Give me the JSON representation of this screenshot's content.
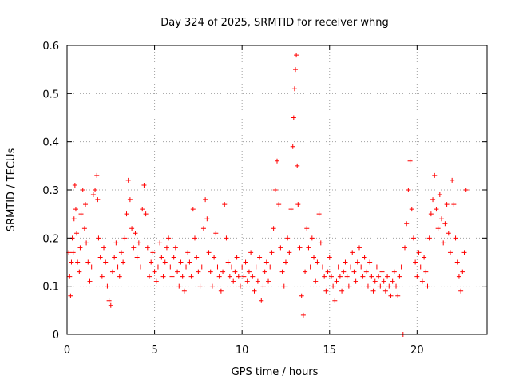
{
  "chart_data": {
    "type": "scatter",
    "title": "Day 324 of 2025, SRMTID for receiver whng",
    "xlabel": "GPS time / hours",
    "ylabel": "SRMTID / TECUs",
    "xlim": [
      0,
      24
    ],
    "ylim": [
      0,
      0.6
    ],
    "xticks": [
      0,
      5,
      10,
      15,
      20
    ],
    "yticks": [
      0,
      0.1,
      0.2,
      0.3,
      0.4,
      0.5,
      0.6
    ],
    "xtick_labels": [
      "0",
      "5",
      "10",
      "15",
      "20"
    ],
    "ytick_labels": [
      "0",
      "0.1",
      "0.2",
      "0.3",
      "0.4",
      "0.5",
      "0.6"
    ],
    "grid": true,
    "marker": "+",
    "color": "#ff0000",
    "series": [
      {
        "name": "SRMTID",
        "points": [
          [
            0.0,
            0.14
          ],
          [
            0.1,
            0.17
          ],
          [
            0.15,
            0.12
          ],
          [
            0.2,
            0.08
          ],
          [
            0.25,
            0.15
          ],
          [
            0.3,
            0.2
          ],
          [
            0.35,
            0.17
          ],
          [
            0.4,
            0.24
          ],
          [
            0.45,
            0.31
          ],
          [
            0.5,
            0.26
          ],
          [
            0.55,
            0.21
          ],
          [
            0.6,
            0.15
          ],
          [
            0.7,
            0.13
          ],
          [
            0.75,
            0.18
          ],
          [
            0.8,
            0.25
          ],
          [
            0.9,
            0.3
          ],
          [
            1.0,
            0.22
          ],
          [
            1.05,
            0.27
          ],
          [
            1.1,
            0.19
          ],
          [
            1.2,
            0.15
          ],
          [
            1.3,
            0.11
          ],
          [
            1.4,
            0.14
          ],
          [
            1.5,
            0.29
          ],
          [
            1.6,
            0.3
          ],
          [
            1.7,
            0.33
          ],
          [
            1.75,
            0.28
          ],
          [
            1.8,
            0.2
          ],
          [
            1.9,
            0.16
          ],
          [
            2.0,
            0.12
          ],
          [
            2.1,
            0.18
          ],
          [
            2.2,
            0.15
          ],
          [
            2.3,
            0.1
          ],
          [
            2.4,
            0.07
          ],
          [
            2.5,
            0.06
          ],
          [
            2.6,
            0.13
          ],
          [
            2.7,
            0.16
          ],
          [
            2.8,
            0.19
          ],
          [
            2.9,
            0.14
          ],
          [
            3.0,
            0.12
          ],
          [
            3.1,
            0.17
          ],
          [
            3.2,
            0.15
          ],
          [
            3.3,
            0.2
          ],
          [
            3.4,
            0.25
          ],
          [
            3.5,
            0.32
          ],
          [
            3.6,
            0.28
          ],
          [
            3.7,
            0.22
          ],
          [
            3.8,
            0.18
          ],
          [
            3.9,
            0.21
          ],
          [
            4.0,
            0.16
          ],
          [
            4.1,
            0.19
          ],
          [
            4.2,
            0.14
          ],
          [
            4.3,
            0.26
          ],
          [
            4.4,
            0.31
          ],
          [
            4.5,
            0.25
          ],
          [
            4.6,
            0.18
          ],
          [
            4.7,
            0.12
          ],
          [
            4.8,
            0.15
          ],
          [
            4.9,
            0.17
          ],
          [
            5.0,
            0.13
          ],
          [
            5.1,
            0.11
          ],
          [
            5.2,
            0.14
          ],
          [
            5.3,
            0.19
          ],
          [
            5.4,
            0.16
          ],
          [
            5.5,
            0.12
          ],
          [
            5.6,
            0.15
          ],
          [
            5.7,
            0.18
          ],
          [
            5.8,
            0.2
          ],
          [
            5.9,
            0.14
          ],
          [
            6.0,
            0.12
          ],
          [
            6.1,
            0.16
          ],
          [
            6.2,
            0.18
          ],
          [
            6.3,
            0.13
          ],
          [
            6.4,
            0.1
          ],
          [
            6.5,
            0.15
          ],
          [
            6.6,
            0.12
          ],
          [
            6.7,
            0.09
          ],
          [
            6.8,
            0.14
          ],
          [
            6.9,
            0.17
          ],
          [
            7.0,
            0.15
          ],
          [
            7.1,
            0.12
          ],
          [
            7.2,
            0.26
          ],
          [
            7.3,
            0.2
          ],
          [
            7.4,
            0.16
          ],
          [
            7.5,
            0.13
          ],
          [
            7.6,
            0.1
          ],
          [
            7.7,
            0.14
          ],
          [
            7.8,
            0.22
          ],
          [
            7.9,
            0.28
          ],
          [
            8.0,
            0.24
          ],
          [
            8.1,
            0.17
          ],
          [
            8.2,
            0.13
          ],
          [
            8.3,
            0.1
          ],
          [
            8.4,
            0.16
          ],
          [
            8.5,
            0.21
          ],
          [
            8.6,
            0.14
          ],
          [
            8.7,
            0.12
          ],
          [
            8.8,
            0.09
          ],
          [
            8.9,
            0.13
          ],
          [
            9.0,
            0.27
          ],
          [
            9.1,
            0.2
          ],
          [
            9.2,
            0.15
          ],
          [
            9.3,
            0.12
          ],
          [
            9.4,
            0.14
          ],
          [
            9.5,
            0.11
          ],
          [
            9.6,
            0.13
          ],
          [
            9.7,
            0.16
          ],
          [
            9.8,
            0.12
          ],
          [
            9.9,
            0.1
          ],
          [
            10.0,
            0.14
          ],
          [
            10.1,
            0.12
          ],
          [
            10.2,
            0.15
          ],
          [
            10.3,
            0.11
          ],
          [
            10.4,
            0.13
          ],
          [
            10.5,
            0.17
          ],
          [
            10.6,
            0.12
          ],
          [
            10.7,
            0.09
          ],
          [
            10.8,
            0.14
          ],
          [
            10.9,
            0.11
          ],
          [
            11.0,
            0.16
          ],
          [
            11.1,
            0.07
          ],
          [
            11.2,
            0.1
          ],
          [
            11.3,
            0.13
          ],
          [
            11.4,
            0.15
          ],
          [
            11.5,
            0.11
          ],
          [
            11.6,
            0.14
          ],
          [
            11.7,
            0.17
          ],
          [
            11.8,
            0.22
          ],
          [
            11.9,
            0.3
          ],
          [
            12.0,
            0.36
          ],
          [
            12.1,
            0.27
          ],
          [
            12.2,
            0.18
          ],
          [
            12.3,
            0.13
          ],
          [
            12.4,
            0.1
          ],
          [
            12.5,
            0.15
          ],
          [
            12.6,
            0.2
          ],
          [
            12.7,
            0.17
          ],
          [
            12.8,
            0.26
          ],
          [
            12.9,
            0.39
          ],
          [
            12.95,
            0.45
          ],
          [
            13.0,
            0.51
          ],
          [
            13.05,
            0.55
          ],
          [
            13.1,
            0.58
          ],
          [
            13.15,
            0.35
          ],
          [
            13.2,
            0.27
          ],
          [
            13.3,
            0.18
          ],
          [
            13.4,
            0.08
          ],
          [
            13.5,
            0.04
          ],
          [
            13.6,
            0.13
          ],
          [
            13.7,
            0.22
          ],
          [
            13.8,
            0.18
          ],
          [
            13.9,
            0.14
          ],
          [
            14.0,
            0.2
          ],
          [
            14.1,
            0.16
          ],
          [
            14.2,
            0.11
          ],
          [
            14.3,
            0.15
          ],
          [
            14.4,
            0.25
          ],
          [
            14.5,
            0.19
          ],
          [
            14.6,
            0.14
          ],
          [
            14.7,
            0.12
          ],
          [
            14.8,
            0.09
          ],
          [
            14.9,
            0.13
          ],
          [
            15.0,
            0.16
          ],
          [
            15.1,
            0.12
          ],
          [
            15.2,
            0.1
          ],
          [
            15.3,
            0.07
          ],
          [
            15.4,
            0.11
          ],
          [
            15.5,
            0.14
          ],
          [
            15.6,
            0.12
          ],
          [
            15.7,
            0.09
          ],
          [
            15.8,
            0.13
          ],
          [
            15.9,
            0.15
          ],
          [
            16.0,
            0.12
          ],
          [
            16.1,
            0.1
          ],
          [
            16.2,
            0.14
          ],
          [
            16.3,
            0.17
          ],
          [
            16.4,
            0.13
          ],
          [
            16.5,
            0.11
          ],
          [
            16.6,
            0.15
          ],
          [
            16.7,
            0.18
          ],
          [
            16.8,
            0.14
          ],
          [
            16.9,
            0.12
          ],
          [
            17.0,
            0.16
          ],
          [
            17.1,
            0.13
          ],
          [
            17.2,
            0.1
          ],
          [
            17.3,
            0.15
          ],
          [
            17.4,
            0.12
          ],
          [
            17.5,
            0.09
          ],
          [
            17.6,
            0.11
          ],
          [
            17.7,
            0.14
          ],
          [
            17.8,
            0.12
          ],
          [
            17.9,
            0.1
          ],
          [
            18.0,
            0.13
          ],
          [
            18.1,
            0.11
          ],
          [
            18.2,
            0.09
          ],
          [
            18.3,
            0.12
          ],
          [
            18.4,
            0.1
          ],
          [
            18.5,
            0.08
          ],
          [
            18.6,
            0.11
          ],
          [
            18.7,
            0.13
          ],
          [
            18.8,
            0.1
          ],
          [
            18.9,
            0.08
          ],
          [
            19.0,
            0.12
          ],
          [
            19.1,
            0.14
          ],
          [
            19.2,
            0.0
          ],
          [
            19.3,
            0.18
          ],
          [
            19.4,
            0.23
          ],
          [
            19.5,
            0.3
          ],
          [
            19.6,
            0.36
          ],
          [
            19.7,
            0.26
          ],
          [
            19.8,
            0.2
          ],
          [
            19.9,
            0.15
          ],
          [
            20.0,
            0.12
          ],
          [
            20.1,
            0.17
          ],
          [
            20.2,
            0.14
          ],
          [
            20.3,
            0.11
          ],
          [
            20.4,
            0.16
          ],
          [
            20.5,
            0.13
          ],
          [
            20.6,
            0.1
          ],
          [
            20.7,
            0.2
          ],
          [
            20.8,
            0.25
          ],
          [
            20.9,
            0.28
          ],
          [
            21.0,
            0.33
          ],
          [
            21.1,
            0.26
          ],
          [
            21.2,
            0.22
          ],
          [
            21.3,
            0.29
          ],
          [
            21.4,
            0.24
          ],
          [
            21.5,
            0.19
          ],
          [
            21.6,
            0.23
          ],
          [
            21.7,
            0.27
          ],
          [
            21.8,
            0.21
          ],
          [
            21.9,
            0.17
          ],
          [
            22.0,
            0.32
          ],
          [
            22.1,
            0.27
          ],
          [
            22.2,
            0.2
          ],
          [
            22.3,
            0.15
          ],
          [
            22.4,
            0.12
          ],
          [
            22.5,
            0.09
          ],
          [
            22.6,
            0.13
          ],
          [
            22.7,
            0.17
          ],
          [
            22.8,
            0.3
          ]
        ]
      }
    ]
  }
}
